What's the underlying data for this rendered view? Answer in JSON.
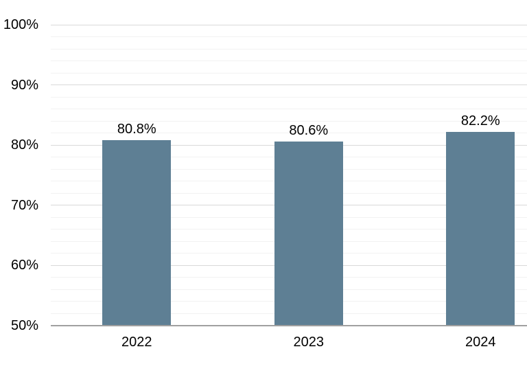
{
  "chart_data": {
    "type": "bar",
    "title": "",
    "categories": [
      "2022",
      "2023",
      "2024"
    ],
    "values": [
      80.8,
      80.6,
      82.2
    ],
    "data_labels": [
      "80.8%",
      "80.6%",
      "82.2%"
    ],
    "xlabel": "",
    "ylabel": "",
    "ylim": [
      50,
      100
    ],
    "y_ticks": [
      100,
      90,
      80,
      70,
      60,
      50
    ],
    "y_tick_labels": [
      "100%",
      "90%",
      "80%",
      "70%",
      "60%",
      "50%"
    ],
    "major_tick_step": 10,
    "minor_tick_step": 2,
    "grid": true,
    "legend": false,
    "colors": {
      "bar_fill": "#5e7f94",
      "major_gridline": "#d9d9d9",
      "minor_gridline": "#f2f2f2",
      "axis_line": "#a0a0a0",
      "label_text": "#000000",
      "background": "#ffffff"
    }
  }
}
